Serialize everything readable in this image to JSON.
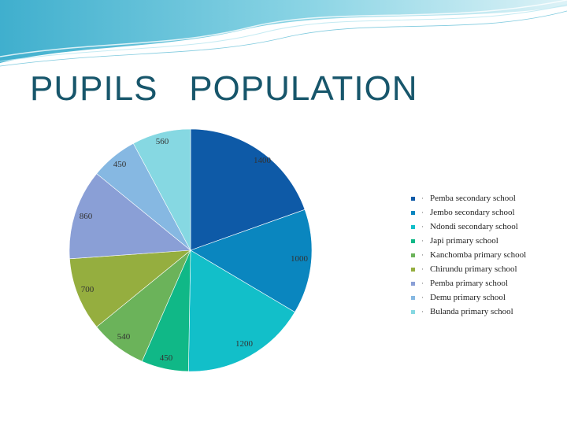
{
  "title": "PUPILS   POPULATION",
  "chart_data": {
    "type": "pie",
    "categories": [
      "Pemba secondary school",
      "Jembo secondary school",
      "Ndondi secondary school",
      "Japi primary school",
      "Kanchomba primary school",
      "Chirundu primary school",
      "Pemba primary school",
      "Demu primary school",
      "Bulanda primary school"
    ],
    "values": [
      1400,
      1000,
      1200,
      450,
      540,
      700,
      860,
      450,
      560
    ],
    "colors": [
      "#0e5aa7",
      "#0a86bf",
      "#12bfc9",
      "#10b887",
      "#6bb35a",
      "#95ae3f",
      "#8a9fd6",
      "#86b8e2",
      "#86d8e2"
    ],
    "legend_placement": "right",
    "legend_bullet": "·"
  }
}
